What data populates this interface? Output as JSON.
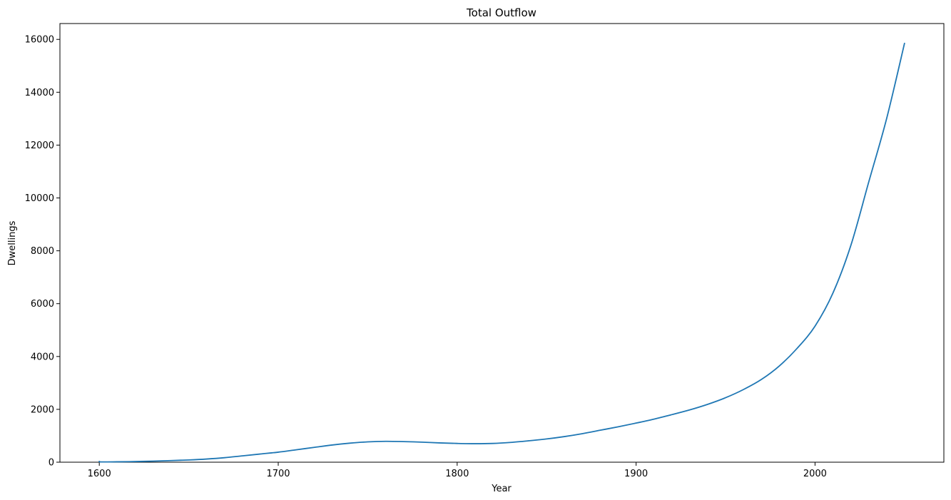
{
  "chart_data": {
    "type": "line",
    "title": "Total Outflow",
    "xlabel": "Year",
    "ylabel": "Dwellings",
    "xlim": [
      1578,
      2072
    ],
    "ylim": [
      0,
      16600
    ],
    "x_ticks": [
      1600,
      1700,
      1800,
      1900,
      2000
    ],
    "y_ticks": [
      0,
      2000,
      4000,
      6000,
      8000,
      10000,
      12000,
      14000,
      16000
    ],
    "grid": false,
    "legend": "none",
    "series": [
      {
        "color": "#1f77b4",
        "x": [
          1600,
          1601,
          1610,
          1620,
          1630,
          1640,
          1650,
          1660,
          1670,
          1680,
          1690,
          1700,
          1710,
          1720,
          1730,
          1740,
          1750,
          1760,
          1770,
          1780,
          1790,
          1800,
          1810,
          1820,
          1830,
          1840,
          1850,
          1860,
          1870,
          1880,
          1890,
          1900,
          1910,
          1920,
          1930,
          1940,
          1950,
          1960,
          1970,
          1980,
          1990,
          2000,
          2010,
          2020,
          2030,
          2040,
          2050
        ],
        "y": [
          30,
          10,
          15,
          25,
          40,
          60,
          85,
          120,
          170,
          240,
          310,
          380,
          470,
          560,
          650,
          720,
          770,
          790,
          780,
          760,
          730,
          710,
          700,
          710,
          750,
          810,
          880,
          970,
          1080,
          1210,
          1340,
          1480,
          1630,
          1800,
          1980,
          2190,
          2440,
          2750,
          3130,
          3640,
          4310,
          5150,
          6400,
          8200,
          10600,
          13000,
          15850
        ]
      }
    ]
  }
}
